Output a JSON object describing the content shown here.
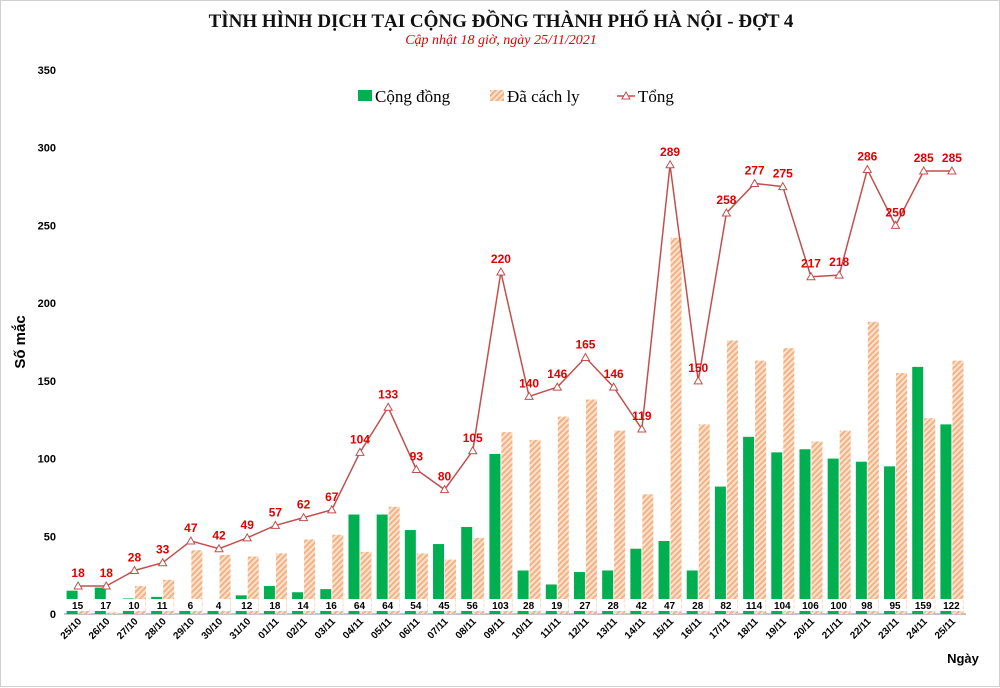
{
  "chart_data": {
    "type": "bar",
    "title": "TÌNH HÌNH DỊCH TẠI CỘNG ĐỒNG THÀNH PHỐ HÀ NỘI - ĐỢT 4",
    "subtitle": "Cập nhật 18 giờ, ngày 25/11/2021",
    "xlabel": "Ngày",
    "ylabel": "Số mắc",
    "ylim": [
      0,
      350
    ],
    "yticks": [
      0,
      50,
      100,
      150,
      200,
      250,
      300,
      350
    ],
    "grid": false,
    "legend_position": "top-center",
    "categories": [
      "25/10",
      "26/10",
      "27/10",
      "28/10",
      "29/10",
      "30/10",
      "31/10",
      "01/11",
      "02/11",
      "03/11",
      "04/11",
      "05/11",
      "06/11",
      "07/11",
      "08/11",
      "09/11",
      "10/11",
      "11/11",
      "12/11",
      "13/11",
      "14/11",
      "15/11",
      "16/11",
      "17/11",
      "18/11",
      "19/11",
      "20/11",
      "21/11",
      "22/11",
      "23/11",
      "24/11",
      "25/11"
    ],
    "series": [
      {
        "name": "Cộng đồng",
        "type": "bar",
        "color": "#00b050",
        "values": [
          15,
          17,
          10,
          11,
          6,
          4,
          12,
          18,
          14,
          16,
          64,
          64,
          54,
          45,
          56,
          103,
          28,
          19,
          27,
          28,
          42,
          47,
          28,
          82,
          114,
          104,
          106,
          100,
          98,
          95,
          159,
          122
        ]
      },
      {
        "name": "Đã cách ly",
        "type": "bar",
        "color": "#f4b183",
        "pattern": "hatched",
        "values": [
          3,
          1,
          18,
          22,
          41,
          38,
          37,
          39,
          48,
          51,
          40,
          69,
          39,
          35,
          49,
          117,
          112,
          127,
          138,
          118,
          77,
          242,
          122,
          176,
          163,
          171,
          111,
          118,
          188,
          155,
          126,
          163
        ]
      },
      {
        "name": "Tổng",
        "type": "line",
        "color": "#c0504d",
        "marker": "triangle",
        "values": [
          18,
          18,
          28,
          33,
          47,
          42,
          49,
          57,
          62,
          67,
          104,
          133,
          93,
          80,
          105,
          220,
          140,
          146,
          165,
          146,
          119,
          289,
          150,
          258,
          277,
          275,
          217,
          218,
          286,
          250,
          285,
          285
        ]
      }
    ]
  }
}
